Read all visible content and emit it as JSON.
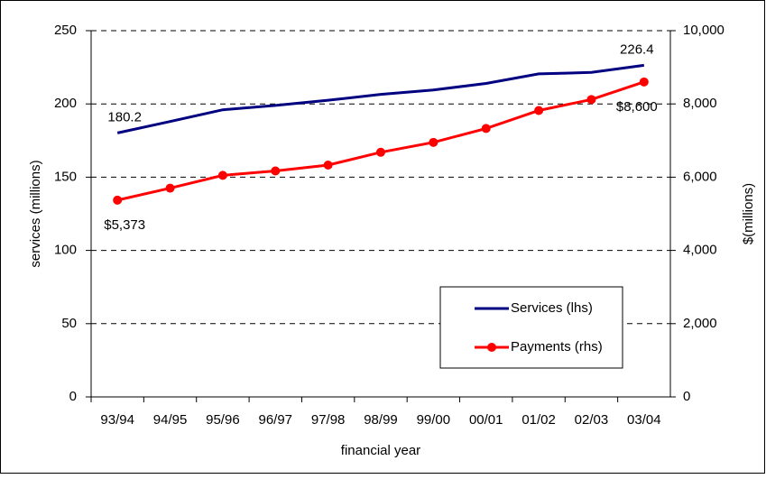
{
  "chart_data": {
    "type": "line",
    "categories": [
      "93/94",
      "94/95",
      "95/96",
      "96/97",
      "97/98",
      "98/99",
      "99/00",
      "00/01",
      "01/02",
      "02/03",
      "03/04"
    ],
    "x_label": "financial year",
    "y_label": "services (millions)",
    "y2_label": "$(millions)",
    "series": [
      {
        "name": "Services (lhs)",
        "color": "#000080",
        "marker": false,
        "values": [
          180.2,
          188,
          196,
          199,
          202.5,
          206.5,
          209.5,
          214,
          220.5,
          221.5,
          226.4
        ],
        "value_labels": [
          "180.2",
          null,
          null,
          null,
          null,
          null,
          null,
          null,
          null,
          null,
          "226.4"
        ]
      },
      {
        "name": "Payments (rhs)",
        "color": "#ff0000",
        "marker": true,
        "axis": "y2",
        "values": [
          5373,
          5700,
          6050,
          6170,
          6330,
          6680,
          6950,
          7330,
          7820,
          8120,
          8600
        ],
        "value_labels": [
          "$5,373",
          null,
          null,
          null,
          null,
          null,
          null,
          null,
          null,
          null,
          "$8,600"
        ]
      }
    ],
    "ylim": [
      0,
      250
    ],
    "yticks": [
      0,
      50,
      100,
      150,
      200,
      250
    ],
    "y2lim": [
      0,
      10000
    ],
    "y2ticks": [
      0,
      {
        "value": 2000,
        "label": "2,000"
      },
      {
        "value": 4000,
        "label": "4,000"
      },
      {
        "value": 6000,
        "label": "6,000"
      },
      {
        "value": 8000,
        "label": "8,000"
      },
      {
        "value": 10000,
        "label": "10,000"
      }
    ],
    "grid": true,
    "legend": "lower-right"
  }
}
